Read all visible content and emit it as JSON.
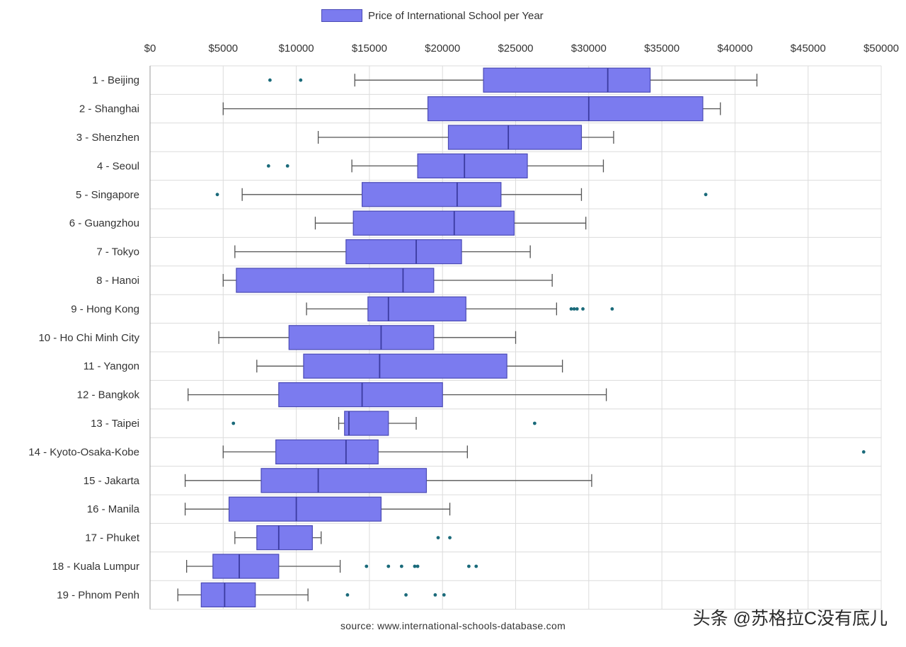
{
  "chart_data": {
    "type": "box",
    "legend": {
      "label": "Price of International School per Year",
      "position": "top-center",
      "color": "#7b7bef"
    },
    "x_axis": {
      "range": [
        0,
        50000
      ],
      "ticks": [
        0,
        5000,
        10000,
        15000,
        20000,
        25000,
        30000,
        35000,
        40000,
        45000,
        50000
      ],
      "tick_labels": [
        "$0",
        "$5000",
        "$10000",
        "$15000",
        "$20000",
        "$25000",
        "$30000",
        "$35000",
        "$40000",
        "$45000",
        "$50000"
      ],
      "position": "top"
    },
    "grid": true,
    "series": [
      {
        "label": "1 - Beijing",
        "whisker_low": 14000,
        "q1": 22800,
        "median": 31300,
        "q3": 34200,
        "whisker_high": 41500,
        "outliers": [
          8200,
          10300
        ]
      },
      {
        "label": "2 - Shanghai",
        "whisker_low": 5000,
        "q1": 19000,
        "median": 30000,
        "q3": 37800,
        "whisker_high": 39000,
        "outliers": []
      },
      {
        "label": "3 - Shenzhen",
        "whisker_low": 11500,
        "q1": 20400,
        "median": 24500,
        "q3": 29500,
        "whisker_high": 31700,
        "outliers": []
      },
      {
        "label": "4 - Seoul",
        "whisker_low": 13800,
        "q1": 18300,
        "median": 21500,
        "q3": 25800,
        "whisker_high": 31000,
        "outliers": [
          8100,
          9400
        ]
      },
      {
        "label": "5 - Singapore",
        "whisker_low": 6300,
        "q1": 14500,
        "median": 21000,
        "q3": 24000,
        "whisker_high": 29500,
        "outliers": [
          4600,
          38000
        ]
      },
      {
        "label": "6 - Guangzhou",
        "whisker_low": 11300,
        "q1": 13900,
        "median": 20800,
        "q3": 24900,
        "whisker_high": 29800,
        "outliers": []
      },
      {
        "label": "7 - Tokyo",
        "whisker_low": 5800,
        "q1": 13400,
        "median": 18200,
        "q3": 21300,
        "whisker_high": 26000,
        "outliers": []
      },
      {
        "label": "8 - Hanoi",
        "whisker_low": 5000,
        "q1": 5900,
        "median": 17300,
        "q3": 19400,
        "whisker_high": 27500,
        "outliers": []
      },
      {
        "label": "9 - Hong Kong",
        "whisker_low": 10700,
        "q1": 14900,
        "median": 16300,
        "q3": 21600,
        "whisker_high": 27800,
        "outliers": [
          28800,
          29000,
          29200,
          29600,
          31600
        ]
      },
      {
        "label": "10 - Ho Chi Minh City",
        "whisker_low": 4700,
        "q1": 9500,
        "median": 15800,
        "q3": 19400,
        "whisker_high": 25000,
        "outliers": []
      },
      {
        "label": "11 - Yangon",
        "whisker_low": 7300,
        "q1": 10500,
        "median": 15700,
        "q3": 24400,
        "whisker_high": 28200,
        "outliers": []
      },
      {
        "label": "12 - Bangkok",
        "whisker_low": 2600,
        "q1": 8800,
        "median": 14500,
        "q3": 20000,
        "whisker_high": 31200,
        "outliers": []
      },
      {
        "label": "13 - Taipei",
        "whisker_low": 12900,
        "q1": 13300,
        "median": 13600,
        "q3": 16300,
        "whisker_high": 18200,
        "outliers": [
          5700,
          26300
        ]
      },
      {
        "label": "14 - Kyoto-Osaka-Kobe",
        "whisker_low": 5000,
        "q1": 8600,
        "median": 13400,
        "q3": 15600,
        "whisker_high": 21700,
        "outliers": [
          48800
        ]
      },
      {
        "label": "15 - Jakarta",
        "whisker_low": 2400,
        "q1": 7600,
        "median": 11500,
        "q3": 18900,
        "whisker_high": 30200,
        "outliers": []
      },
      {
        "label": "16 - Manila",
        "whisker_low": 2400,
        "q1": 5400,
        "median": 10000,
        "q3": 15800,
        "whisker_high": 20500,
        "outliers": []
      },
      {
        "label": "17 - Phuket",
        "whisker_low": 5800,
        "q1": 7300,
        "median": 8800,
        "q3": 11100,
        "whisker_high": 11700,
        "outliers": [
          19700,
          20500
        ]
      },
      {
        "label": "18 - Kuala Lumpur",
        "whisker_low": 2500,
        "q1": 4300,
        "median": 6100,
        "q3": 8800,
        "whisker_high": 13000,
        "outliers": [
          14800,
          16300,
          17200,
          18100,
          18300,
          21800,
          22300
        ]
      },
      {
        "label": "19 - Phnom Penh",
        "whisker_low": 1900,
        "q1": 3500,
        "median": 5100,
        "q3": 7200,
        "whisker_high": 10800,
        "outliers": [
          13500,
          17500,
          19500,
          20100
        ]
      }
    ],
    "source": "source: www.international-schools-database.com"
  },
  "watermark": "头条 @苏格拉C没有底儿",
  "colors": {
    "box_fill": "#7b7bef",
    "box_stroke": "#4b4bb5",
    "whisker": "#555555",
    "median": "#3b3ba0",
    "outlier": "#1a6a7a",
    "grid": "#dcdcdc"
  }
}
